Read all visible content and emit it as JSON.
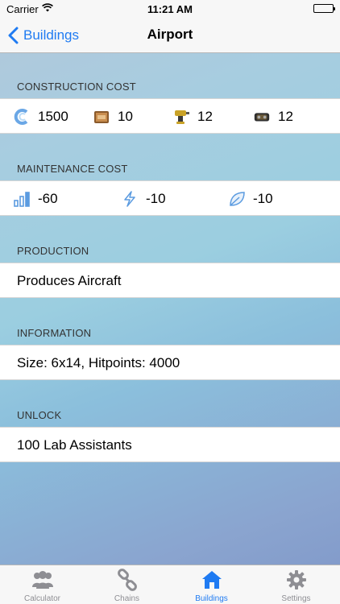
{
  "status_bar": {
    "carrier": "Carrier",
    "time": "11:21 AM"
  },
  "nav": {
    "back_label": "Buildings",
    "title": "Airport"
  },
  "sections": {
    "construction": {
      "header": "CONSTRUCTION COST",
      "items": [
        {
          "icon": "credits-icon",
          "value": "1500"
        },
        {
          "icon": "crate-icon",
          "value": "10"
        },
        {
          "icon": "drill-icon",
          "value": "12"
        },
        {
          "icon": "machine-part-icon",
          "value": "12"
        }
      ]
    },
    "maintenance": {
      "header": "MAINTENANCE COST",
      "items": [
        {
          "icon": "bar-chart-icon",
          "value": "-60"
        },
        {
          "icon": "lightning-icon",
          "value": "-10"
        },
        {
          "icon": "leaf-icon",
          "value": "-10"
        }
      ]
    },
    "production": {
      "header": "PRODUCTION",
      "text": "Produces Aircraft"
    },
    "information": {
      "header": "INFORMATION",
      "text": "Size: 6x14, Hitpoints: 4000"
    },
    "unlock": {
      "header": "UNLOCK",
      "text": "100 Lab Assistants"
    }
  },
  "tabbar": {
    "tabs": [
      {
        "label": "Calculator",
        "icon": "users-icon"
      },
      {
        "label": "Chains",
        "icon": "chain-icon"
      },
      {
        "label": "Buildings",
        "icon": "home-icon",
        "active": true
      },
      {
        "label": "Settings",
        "icon": "gear-icon"
      }
    ]
  },
  "colors": {
    "accent": "#1f7bf2",
    "inactive_tab": "#8e8e93"
  }
}
